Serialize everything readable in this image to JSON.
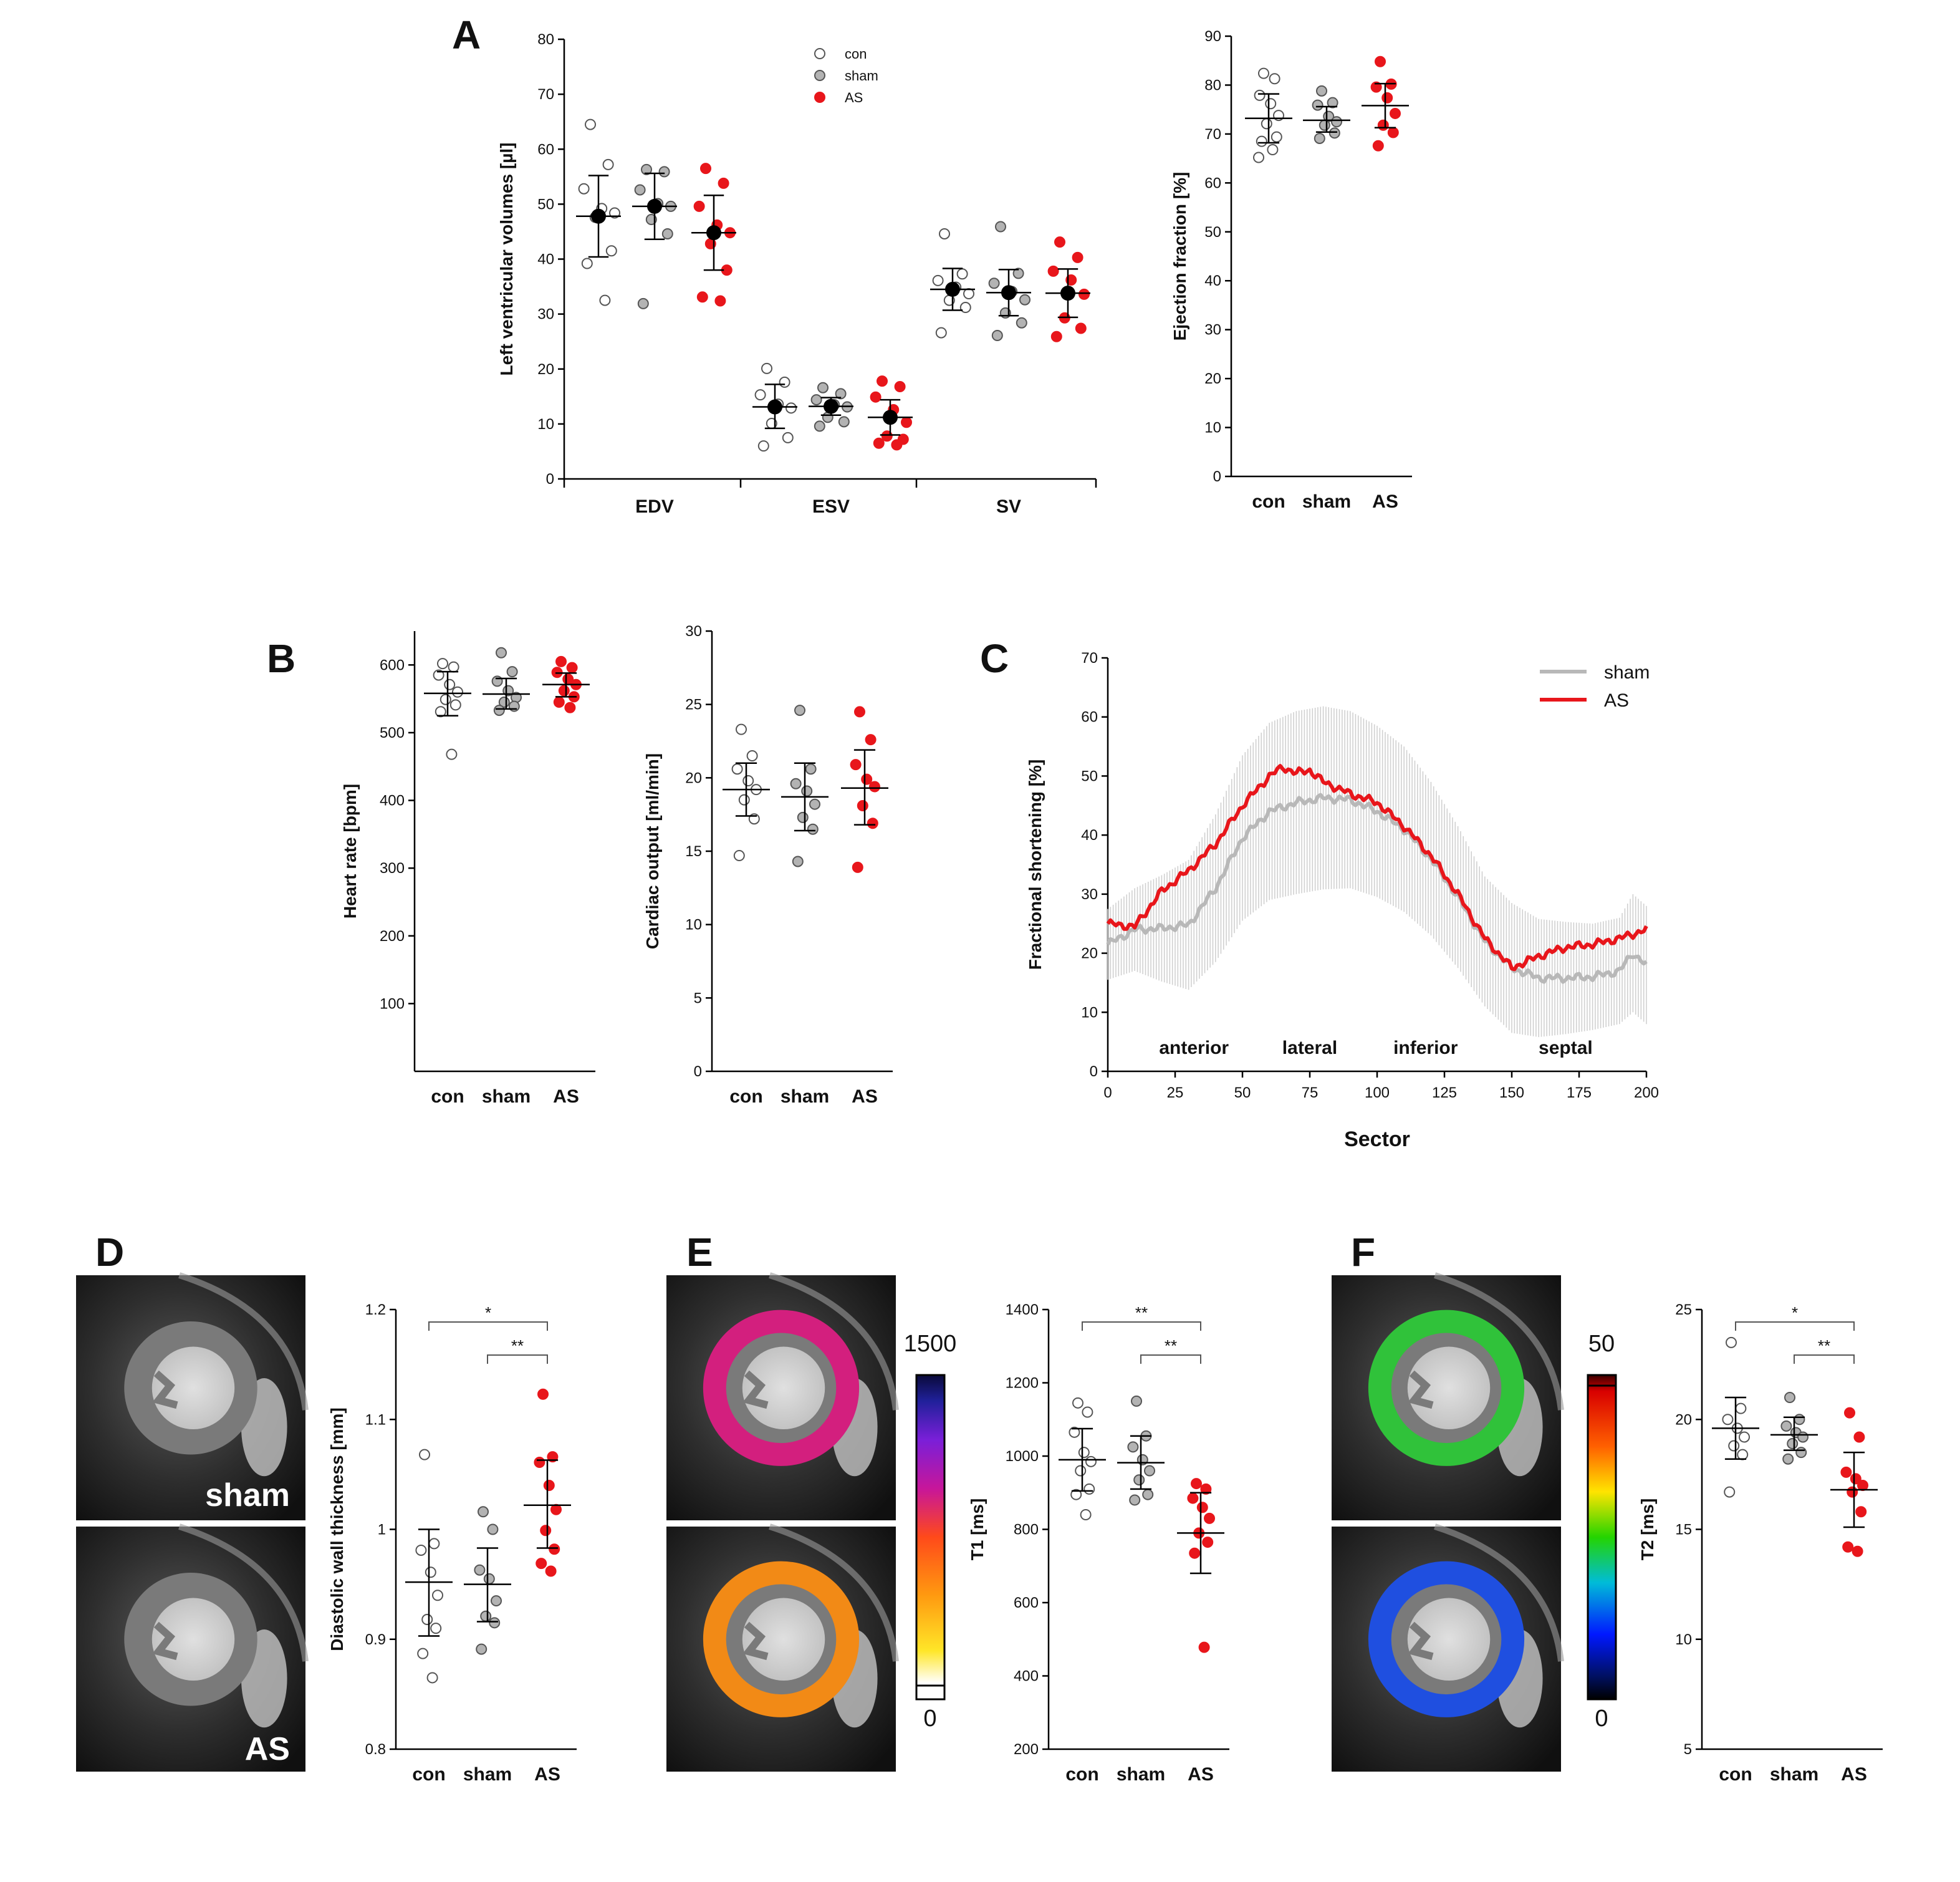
{
  "figure": {
    "panel_letters": [
      "A",
      "B",
      "C",
      "D",
      "E",
      "F"
    ],
    "group_labels": [
      "con",
      "sham",
      "AS"
    ],
    "colors": {
      "con": "#ffffff",
      "sham": "#b3b3b3",
      "AS": "#e8161b",
      "mean_marker": "#000000"
    }
  },
  "chart_data": [
    {
      "id": "A_volumes",
      "type": "scatter",
      "ylabel": "Left ventricular volumes [µl]",
      "ylim": [
        0,
        80
      ],
      "yticks": [
        0,
        10,
        20,
        30,
        40,
        50,
        60,
        70,
        80
      ],
      "categories": [
        "EDV",
        "ESV",
        "SV"
      ],
      "legend": [
        "con",
        "sham",
        "AS"
      ],
      "series": [
        {
          "name": "con",
          "category": "EDV",
          "mean": 47.8,
          "sd": [
            40.4,
            55.2
          ],
          "points": [
            64.5,
            57.2,
            52.8,
            49.2,
            48.4,
            47.6,
            41.5,
            39.2,
            32.5
          ]
        },
        {
          "name": "sham",
          "category": "EDV",
          "mean": 49.6,
          "sd": [
            43.6,
            55.6
          ],
          "points": [
            56.3,
            55.9,
            52.6,
            50.1,
            49.6,
            47.2,
            44.6,
            31.9
          ]
        },
        {
          "name": "AS",
          "category": "EDV",
          "mean": 44.8,
          "sd": [
            38.0,
            51.6
          ],
          "points": [
            56.5,
            53.8,
            49.6,
            46.2,
            44.8,
            42.8,
            38.0,
            33.1,
            32.4
          ]
        },
        {
          "name": "con",
          "category": "ESV",
          "mean": 13.1,
          "sd": [
            9.2,
            17.2
          ],
          "points": [
            20.1,
            17.6,
            15.3,
            13.6,
            12.9,
            10.1,
            7.5,
            6.0
          ]
        },
        {
          "name": "sham",
          "category": "ESV",
          "mean": 13.2,
          "sd": [
            11.6,
            14.8
          ],
          "points": [
            16.6,
            15.5,
            14.4,
            13.5,
            13.1,
            11.2,
            10.4,
            9.6
          ]
        },
        {
          "name": "AS",
          "category": "ESV",
          "mean": 11.2,
          "sd": [
            8.0,
            14.4
          ],
          "points": [
            17.8,
            16.8,
            14.9,
            12.6,
            10.3,
            7.8,
            7.2,
            6.5,
            6.2
          ]
        },
        {
          "name": "con",
          "category": "SV",
          "mean": 34.5,
          "sd": [
            30.7,
            38.3
          ],
          "points": [
            44.6,
            37.3,
            36.1,
            34.9,
            33.7,
            32.5,
            31.2,
            26.6
          ]
        },
        {
          "name": "sham",
          "category": "SV",
          "mean": 33.9,
          "sd": [
            29.7,
            38.1
          ],
          "points": [
            45.9,
            37.4,
            35.6,
            34.1,
            32.6,
            30.2,
            28.4,
            26.1
          ]
        },
        {
          "name": "AS",
          "category": "SV",
          "mean": 33.8,
          "sd": [
            29.4,
            38.2
          ],
          "points": [
            43.1,
            40.3,
            37.8,
            36.2,
            33.6,
            29.3,
            27.4,
            25.9
          ]
        }
      ]
    },
    {
      "id": "A_ef",
      "type": "scatter",
      "ylabel": "Ejection fraction [%]",
      "ylim": [
        0,
        90
      ],
      "yticks": [
        0,
        10,
        20,
        30,
        40,
        50,
        60,
        70,
        80,
        90
      ],
      "categories": [
        "con",
        "sham",
        "AS"
      ],
      "groups": [
        {
          "name": "con",
          "mean": 73.2,
          "sd": [
            68.2,
            78.2
          ],
          "points": [
            82.4,
            81.3,
            77.9,
            76.2,
            73.8,
            72.1,
            69.4,
            68.5,
            66.8,
            65.2
          ]
        },
        {
          "name": "sham",
          "mean": 72.8,
          "sd": [
            70.4,
            75.6
          ],
          "points": [
            78.8,
            76.4,
            75.9,
            73.6,
            72.5,
            71.8,
            70.2,
            69.1
          ]
        },
        {
          "name": "AS",
          "mean": 75.8,
          "sd": [
            71.3,
            80.3
          ],
          "points": [
            84.8,
            80.2,
            79.6,
            77.4,
            74.2,
            71.8,
            70.3,
            67.6
          ]
        }
      ]
    },
    {
      "id": "B_hr",
      "type": "scatter",
      "ylabel": "Heart rate [bpm]",
      "ylim": [
        0,
        650
      ],
      "yticks": [
        100,
        200,
        300,
        400,
        500,
        600
      ],
      "categories": [
        "con",
        "sham",
        "AS"
      ],
      "groups": [
        {
          "name": "con",
          "mean": 558,
          "sd": [
            525,
            590
          ],
          "points": [
            602,
            597,
            585,
            571,
            560,
            549,
            541,
            531,
            468
          ]
        },
        {
          "name": "sham",
          "mean": 557,
          "sd": [
            535,
            580
          ],
          "points": [
            618,
            590,
            576,
            562,
            552,
            545,
            539,
            533
          ]
        },
        {
          "name": "AS",
          "mean": 571,
          "sd": [
            553,
            588
          ],
          "points": [
            605,
            596,
            589,
            579,
            571,
            562,
            553,
            545,
            537
          ]
        }
      ]
    },
    {
      "id": "B_co",
      "type": "scatter",
      "ylabel": "Cardiac output [ml/min]",
      "ylim": [
        0,
        30
      ],
      "yticks": [
        0,
        5,
        10,
        15,
        20,
        25,
        30
      ],
      "categories": [
        "con",
        "sham",
        "AS"
      ],
      "groups": [
        {
          "name": "con",
          "mean": 19.2,
          "sd": [
            17.4,
            21.0
          ],
          "points": [
            23.3,
            21.5,
            20.6,
            19.8,
            19.2,
            18.5,
            17.2,
            14.7
          ]
        },
        {
          "name": "sham",
          "mean": 18.7,
          "sd": [
            16.4,
            21.0
          ],
          "points": [
            24.6,
            20.6,
            19.6,
            19.1,
            18.2,
            17.3,
            16.5,
            14.3
          ]
        },
        {
          "name": "AS",
          "mean": 19.3,
          "sd": [
            16.8,
            21.9
          ],
          "points": [
            24.5,
            22.6,
            20.9,
            19.9,
            19.4,
            18.1,
            16.9,
            13.9
          ]
        }
      ]
    },
    {
      "id": "C_fs",
      "type": "line",
      "xlabel": "Sector",
      "ylabel": "Fractional shortening [%]",
      "xlim": [
        0,
        200
      ],
      "ylim": [
        0,
        70
      ],
      "xticks": [
        0,
        25,
        50,
        75,
        100,
        125,
        150,
        175,
        200
      ],
      "yticks": [
        0,
        10,
        20,
        30,
        40,
        50,
        60,
        70
      ],
      "region_labels": [
        {
          "label": "anterior",
          "x": 32
        },
        {
          "label": "lateral",
          "x": 75
        },
        {
          "label": "inferior",
          "x": 118
        },
        {
          "label": "septal",
          "x": 170
        }
      ],
      "series": [
        {
          "name": "sham",
          "x": [
            0,
            10,
            20,
            30,
            40,
            50,
            60,
            70,
            80,
            90,
            100,
            110,
            120,
            130,
            140,
            150,
            160,
            170,
            180,
            190,
            195,
            200
          ],
          "values": [
            21.5,
            24.0,
            24.2,
            24.8,
            31.0,
            39.5,
            44.0,
            45.5,
            46.3,
            46.0,
            44.0,
            41.0,
            36.0,
            29.5,
            22.0,
            17.5,
            15.8,
            15.8,
            16.0,
            17.0,
            20.0,
            18.0
          ],
          "error": [
            6.0,
            7.0,
            9.0,
            11.0,
            12.5,
            14.0,
            15.0,
            15.5,
            15.5,
            15.0,
            14.5,
            14.0,
            13.0,
            12.0,
            11.0,
            11.0,
            10.0,
            9.5,
            9.0,
            9.0,
            10.0,
            10.0
          ]
        },
        {
          "name": "AS",
          "x": [
            0,
            10,
            20,
            30,
            40,
            50,
            60,
            65,
            70,
            75,
            80,
            90,
            100,
            110,
            120,
            130,
            140,
            150,
            160,
            170,
            180,
            190,
            200
          ],
          "values": [
            25.0,
            24.5,
            30.5,
            34.0,
            38.5,
            45.0,
            50.0,
            51.5,
            50.5,
            51.0,
            49.0,
            47.0,
            45.5,
            41.5,
            36.5,
            30.0,
            22.5,
            17.5,
            19.5,
            21.0,
            21.5,
            22.5,
            24.0
          ]
        }
      ],
      "legend": [
        "sham",
        "AS"
      ]
    },
    {
      "id": "D_wall",
      "type": "scatter",
      "ylabel": "Diastolic wall thickness [mm]",
      "ylim": [
        0.8,
        1.2
      ],
      "yticks": [
        0.8,
        0.9,
        1.0,
        1.1,
        1.2
      ],
      "categories": [
        "con",
        "sham",
        "AS"
      ],
      "significance": [
        "*",
        "**"
      ],
      "groups": [
        {
          "name": "con",
          "mean": 0.952,
          "sd": [
            0.903,
            1.0
          ],
          "points": [
            1.068,
            0.987,
            0.981,
            0.961,
            0.94,
            0.918,
            0.91,
            0.887,
            0.865
          ]
        },
        {
          "name": "sham",
          "mean": 0.95,
          "sd": [
            0.916,
            0.983
          ],
          "points": [
            1.016,
            1.0,
            0.963,
            0.955,
            0.935,
            0.921,
            0.915,
            0.891
          ]
        },
        {
          "name": "AS",
          "mean": 1.022,
          "sd": [
            0.983,
            1.063
          ],
          "points": [
            1.123,
            1.066,
            1.061,
            1.04,
            1.018,
            0.999,
            0.982,
            0.969,
            0.962
          ]
        }
      ]
    },
    {
      "id": "E_t1",
      "type": "scatter",
      "ylabel": "T1 [ms]",
      "ylim": [
        200,
        1400
      ],
      "yticks": [
        200,
        400,
        600,
        800,
        1000,
        1200,
        1400
      ],
      "categories": [
        "con",
        "sham",
        "AS"
      ],
      "significance": [
        "**",
        "**"
      ],
      "colorbar": [
        "1500",
        "0"
      ],
      "groups": [
        {
          "name": "con",
          "mean": 990,
          "sd": [
            905,
            1075
          ],
          "points": [
            1145,
            1120,
            1065,
            1010,
            985,
            960,
            910,
            895,
            840
          ]
        },
        {
          "name": "sham",
          "mean": 982,
          "sd": [
            910,
            1055
          ],
          "points": [
            1150,
            1055,
            1025,
            990,
            960,
            935,
            895,
            880
          ]
        },
        {
          "name": "AS",
          "mean": 790,
          "sd": [
            680,
            900
          ],
          "points": [
            925,
            910,
            885,
            860,
            830,
            790,
            765,
            735,
            478
          ]
        }
      ]
    },
    {
      "id": "F_t2",
      "type": "scatter",
      "ylabel": "T2 [ms]",
      "ylim": [
        5,
        25
      ],
      "yticks": [
        5,
        10,
        15,
        20,
        25
      ],
      "categories": [
        "con",
        "sham",
        "AS"
      ],
      "significance": [
        "*",
        "**"
      ],
      "colorbar": [
        "50",
        "0"
      ],
      "groups": [
        {
          "name": "con",
          "mean": 19.6,
          "sd": [
            18.2,
            21.0
          ],
          "points": [
            23.5,
            20.5,
            20.0,
            19.6,
            19.2,
            18.8,
            18.4,
            16.7
          ]
        },
        {
          "name": "sham",
          "mean": 19.3,
          "sd": [
            18.6,
            20.1
          ],
          "points": [
            21.0,
            20.0,
            19.7,
            19.4,
            19.2,
            18.9,
            18.5,
            18.2
          ]
        },
        {
          "name": "AS",
          "mean": 16.8,
          "sd": [
            15.1,
            18.5
          ],
          "points": [
            20.3,
            19.2,
            17.6,
            17.3,
            17.0,
            16.7,
            15.8,
            14.2,
            14.0
          ]
        }
      ]
    }
  ],
  "mri": {
    "labels": [
      "sham",
      "AS"
    ]
  }
}
